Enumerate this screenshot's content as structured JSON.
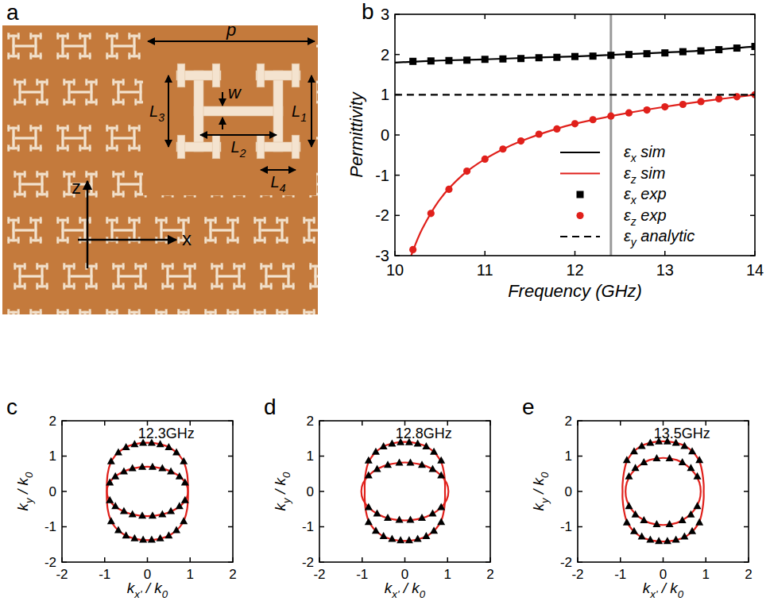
{
  "diagram": {
    "panel": "a",
    "labels": [
      "p",
      "w",
      "L1",
      "L2",
      "L3",
      "L4"
    ],
    "axes": [
      "z",
      "x"
    ]
  },
  "chart_data": [
    {
      "panel": "b",
      "type": "line",
      "xlabel": "Frequency (GHz)",
      "ylabel": "Permittivity",
      "xlim": [
        10,
        14
      ],
      "xticks": [
        10,
        11,
        12,
        13,
        14
      ],
      "ylim": [
        -3,
        3
      ],
      "yticks": [
        -3,
        -2,
        -1,
        0,
        1,
        2,
        3
      ],
      "legend": "lower right",
      "vertical_line": 12.4,
      "series": [
        {
          "name": "εx sim",
          "type": "line",
          "color": "#000000",
          "line_style": "solid",
          "x": [
            10,
            10.5,
            11,
            11.5,
            12,
            12.5,
            13,
            13.5,
            14
          ],
          "values": [
            1.8,
            1.85,
            1.88,
            1.92,
            1.95,
            2.0,
            2.05,
            2.11,
            2.2
          ]
        },
        {
          "name": "εz sim",
          "type": "line",
          "color": "#e0201b",
          "line_style": "solid",
          "x": [
            10.18,
            10.3,
            10.5,
            10.75,
            11,
            11.25,
            11.5,
            11.75,
            12,
            12.5,
            13,
            13.5,
            14
          ],
          "values": [
            -3.0,
            -2.35,
            -1.6,
            -1.0,
            -0.6,
            -0.3,
            -0.07,
            0.12,
            0.28,
            0.51,
            0.7,
            0.86,
            1.0
          ]
        },
        {
          "name": "εx exp",
          "type": "scatter",
          "marker": "square",
          "color": "#000000",
          "x": [
            10.2,
            10.4,
            10.6,
            10.8,
            11.0,
            11.2,
            11.4,
            11.6,
            11.8,
            12.0,
            12.2,
            12.4,
            12.6,
            12.8,
            13.0,
            13.2,
            13.4,
            13.6,
            13.8,
            14.0
          ],
          "values": [
            1.83,
            1.84,
            1.85,
            1.86,
            1.88,
            1.89,
            1.9,
            1.92,
            1.93,
            1.95,
            1.96,
            1.98,
            2.0,
            2.02,
            2.04,
            2.07,
            2.09,
            2.12,
            2.16,
            2.2
          ]
        },
        {
          "name": "εz exp",
          "type": "scatter",
          "marker": "circle",
          "color": "#e0201b",
          "x": [
            10.2,
            10.4,
            10.6,
            10.8,
            11.0,
            11.2,
            11.4,
            11.6,
            11.8,
            12.0,
            12.2,
            12.4,
            12.6,
            12.8,
            13.0,
            13.2,
            13.4,
            13.6,
            13.8,
            14.0
          ],
          "values": [
            -2.85,
            -1.95,
            -1.35,
            -0.9,
            -0.6,
            -0.35,
            -0.15,
            0.02,
            0.15,
            0.28,
            0.38,
            0.47,
            0.55,
            0.62,
            0.7,
            0.76,
            0.83,
            0.9,
            0.95,
            1.0
          ]
        },
        {
          "name": "εy analytic",
          "type": "line",
          "color": "#000000",
          "line_style": "dashed",
          "x": [
            10,
            14
          ],
          "values": [
            1,
            1
          ]
        }
      ]
    },
    {
      "panel": "c",
      "type": "line",
      "title": "12.3GHz",
      "xlabel": "kx' / k0",
      "ylabel": "ky / k0",
      "xlim": [
        -2,
        2
      ],
      "xticks": [
        -2,
        -1,
        0,
        1,
        2
      ],
      "ylim": [
        -2,
        2
      ],
      "yticks": [
        -2,
        -1,
        0,
        1,
        2
      ],
      "series": [
        {
          "type": "line",
          "color": "#e0201b",
          "line_style": "solid",
          "x": [
            0,
            0.3,
            0.55,
            0.75,
            0.87,
            0.93,
            0.95,
            0.95,
            0.95,
            0.93,
            0.87,
            0.75,
            0.55,
            0.3,
            0,
            -0.3,
            -0.55,
            -0.75,
            -0.87,
            -0.93,
            -0.95,
            -0.95,
            -0.95,
            -0.93,
            -0.87,
            -0.75,
            -0.55,
            -0.3,
            0
          ],
          "values": [
            1.38,
            1.34,
            1.22,
            1.02,
            0.78,
            0.5,
            0.2,
            0,
            -0.2,
            -0.5,
            -0.78,
            -1.02,
            -1.22,
            -1.34,
            -1.38,
            -1.34,
            -1.22,
            -1.02,
            -0.78,
            -0.5,
            -0.2,
            0,
            0.2,
            0.5,
            0.78,
            1.02,
            1.22,
            1.34,
            1.38
          ]
        },
        {
          "type": "line",
          "color": "#e0201b",
          "line_style": "solid",
          "x": [
            0,
            0.35,
            0.6,
            0.8,
            0.92,
            0.95,
            0.92,
            0.8,
            0.6,
            0.35,
            0,
            -0.35,
            -0.6,
            -0.8,
            -0.92,
            -0.95,
            -0.92,
            -0.8,
            -0.6,
            -0.35,
            0
          ],
          "values": [
            0.7,
            0.65,
            0.54,
            0.38,
            0.18,
            0,
            -0.18,
            -0.38,
            -0.54,
            -0.65,
            -0.7,
            -0.65,
            -0.54,
            -0.38,
            -0.18,
            0,
            0.18,
            0.38,
            0.54,
            0.65,
            0.7
          ]
        },
        {
          "type": "scatter",
          "marker": "triangle",
          "color": "#000000",
          "x": [
            -0.85,
            -0.68,
            -0.5,
            -0.3,
            -0.1,
            0.1,
            0.3,
            0.5,
            0.68,
            0.85,
            -0.85,
            -0.68,
            -0.5,
            -0.3,
            -0.1,
            0.1,
            0.3,
            0.5,
            0.68,
            0.85,
            -0.88,
            -0.75,
            -0.55,
            -0.35,
            -0.12,
            0.12,
            0.35,
            0.55,
            0.75,
            0.88,
            -0.88,
            -0.75,
            -0.55,
            -0.35,
            -0.12,
            0.12,
            0.35,
            0.55,
            0.75,
            0.88
          ],
          "values": [
            0.85,
            1.1,
            1.25,
            1.33,
            1.37,
            1.37,
            1.33,
            1.25,
            1.1,
            0.85,
            -0.85,
            -1.1,
            -1.25,
            -1.33,
            -1.37,
            -1.37,
            -1.33,
            -1.25,
            -1.1,
            -0.85,
            0.25,
            0.42,
            0.56,
            0.65,
            0.69,
            0.69,
            0.65,
            0.56,
            0.42,
            0.25,
            -0.25,
            -0.42,
            -0.56,
            -0.65,
            -0.69,
            -0.69,
            -0.65,
            -0.56,
            -0.42,
            -0.25
          ]
        }
      ]
    },
    {
      "panel": "d",
      "type": "line",
      "title": "12.8GHz",
      "xlabel": "kx' / k0",
      "ylabel": "ky / k0",
      "xlim": [
        -2,
        2
      ],
      "xticks": [
        -2,
        -1,
        0,
        1,
        2
      ],
      "ylim": [
        -2,
        2
      ],
      "yticks": [
        -2,
        -1,
        0,
        1,
        2
      ],
      "series": [
        {
          "type": "line",
          "color": "#e0201b",
          "line_style": "solid",
          "x": [
            0,
            0.3,
            0.55,
            0.74,
            0.86,
            0.92,
            0.94,
            0.94,
            0.94,
            0.92,
            0.86,
            0.74,
            0.55,
            0.3,
            0,
            -0.3,
            -0.55,
            -0.74,
            -0.86,
            -0.92,
            -0.94,
            -0.94,
            -0.94,
            -0.92,
            -0.86,
            -0.74,
            -0.55,
            -0.3,
            0
          ],
          "values": [
            1.4,
            1.36,
            1.24,
            1.04,
            0.8,
            0.5,
            0.2,
            0,
            -0.2,
            -0.5,
            -0.8,
            -1.04,
            -1.24,
            -1.36,
            -1.4,
            -1.36,
            -1.24,
            -1.04,
            -0.8,
            -0.5,
            -0.2,
            0,
            0.2,
            0.5,
            0.8,
            1.04,
            1.24,
            1.36,
            1.4
          ]
        },
        {
          "type": "line",
          "color": "#e0201b",
          "line_style": "solid",
          "x": [
            0,
            0.38,
            0.64,
            0.85,
            0.98,
            1.02,
            0.98,
            0.85,
            0.64,
            0.38,
            0,
            -0.38,
            -0.64,
            -0.85,
            -0.98,
            -1.02,
            -0.98,
            -0.85,
            -0.64,
            -0.38,
            0
          ],
          "values": [
            0.82,
            0.76,
            0.64,
            0.45,
            0.23,
            0,
            -0.23,
            -0.45,
            -0.64,
            -0.76,
            -0.82,
            -0.76,
            -0.64,
            -0.45,
            -0.23,
            0,
            0.23,
            0.45,
            0.64,
            0.76,
            0.82
          ]
        },
        {
          "type": "scatter",
          "marker": "triangle",
          "color": "#000000",
          "x": [
            -0.85,
            -0.68,
            -0.5,
            -0.3,
            -0.1,
            0.1,
            0.3,
            0.5,
            0.68,
            0.85,
            -0.85,
            -0.68,
            -0.5,
            -0.3,
            -0.1,
            0.1,
            0.3,
            0.5,
            0.68,
            0.85,
            -0.85,
            -0.65,
            -0.4,
            -0.13,
            0.13,
            0.4,
            0.65,
            0.85,
            -0.85,
            -0.65,
            -0.4,
            -0.13,
            0.13,
            0.4,
            0.65,
            0.85
          ],
          "values": [
            0.87,
            1.12,
            1.27,
            1.35,
            1.39,
            1.39,
            1.35,
            1.27,
            1.12,
            0.87,
            -0.87,
            -1.12,
            -1.27,
            -1.35,
            -1.39,
            -1.39,
            -1.35,
            -1.27,
            -1.12,
            -0.87,
            0.45,
            0.63,
            0.75,
            0.81,
            0.81,
            0.75,
            0.63,
            0.45,
            -0.45,
            -0.63,
            -0.75,
            -0.81,
            -0.81,
            -0.75,
            -0.63,
            -0.45
          ]
        }
      ]
    },
    {
      "panel": "e",
      "type": "line",
      "title": "13.5GHz",
      "xlabel": "kx' / k0",
      "ylabel": "ky / k0",
      "xlim": [
        -2,
        2
      ],
      "xticks": [
        -2,
        -1,
        0,
        1,
        2
      ],
      "ylim": [
        -2,
        2
      ],
      "yticks": [
        -2,
        -1,
        0,
        1,
        2
      ],
      "series": [
        {
          "type": "line",
          "color": "#e0201b",
          "line_style": "solid",
          "x": [
            0,
            0.3,
            0.55,
            0.74,
            0.86,
            0.92,
            0.95,
            0.95,
            0.95,
            0.92,
            0.86,
            0.74,
            0.55,
            0.3,
            0,
            -0.3,
            -0.55,
            -0.74,
            -0.86,
            -0.92,
            -0.95,
            -0.95,
            -0.95,
            -0.92,
            -0.86,
            -0.74,
            -0.55,
            -0.3,
            0
          ],
          "values": [
            1.42,
            1.38,
            1.26,
            1.06,
            0.82,
            0.52,
            0.2,
            0,
            -0.2,
            -0.52,
            -0.82,
            -1.06,
            -1.26,
            -1.38,
            -1.42,
            -1.38,
            -1.26,
            -1.06,
            -0.82,
            -0.52,
            -0.2,
            0,
            0.2,
            0.52,
            0.82,
            1.06,
            1.26,
            1.38,
            1.42
          ]
        },
        {
          "type": "line",
          "color": "#e0201b",
          "line_style": "solid",
          "x": [
            0,
            0.32,
            0.56,
            0.74,
            0.85,
            0.88,
            0.85,
            0.74,
            0.56,
            0.32,
            0,
            -0.32,
            -0.56,
            -0.74,
            -0.85,
            -0.88,
            -0.85,
            -0.74,
            -0.56,
            -0.32,
            0
          ],
          "values": [
            0.95,
            0.89,
            0.73,
            0.51,
            0.25,
            0,
            -0.25,
            -0.51,
            -0.73,
            -0.89,
            -0.95,
            -0.89,
            -0.73,
            -0.51,
            -0.25,
            0,
            0.25,
            0.51,
            0.73,
            0.89,
            0.95
          ]
        },
        {
          "type": "scatter",
          "marker": "triangle",
          "color": "#000000",
          "x": [
            -0.85,
            -0.68,
            -0.5,
            -0.3,
            -0.1,
            0.1,
            0.3,
            0.5,
            0.68,
            0.85,
            -0.85,
            -0.68,
            -0.5,
            -0.3,
            -0.1,
            0.1,
            0.3,
            0.5,
            0.68,
            0.85,
            -0.8,
            -0.65,
            -0.45,
            -0.15,
            0.15,
            0.45,
            0.65,
            0.8,
            -0.8,
            -0.65,
            -0.45,
            -0.15,
            0.15,
            0.45,
            0.65,
            0.8
          ],
          "values": [
            0.88,
            1.13,
            1.28,
            1.37,
            1.41,
            1.41,
            1.37,
            1.28,
            1.13,
            0.88,
            -0.88,
            -1.13,
            -1.28,
            -1.37,
            -1.41,
            -1.41,
            -1.37,
            -1.28,
            -1.13,
            -0.88,
            0.42,
            0.66,
            0.82,
            0.93,
            0.93,
            0.82,
            0.66,
            0.42,
            -0.42,
            -0.66,
            -0.82,
            -0.93,
            -0.93,
            -0.82,
            -0.66,
            -0.42
          ]
        }
      ]
    }
  ]
}
